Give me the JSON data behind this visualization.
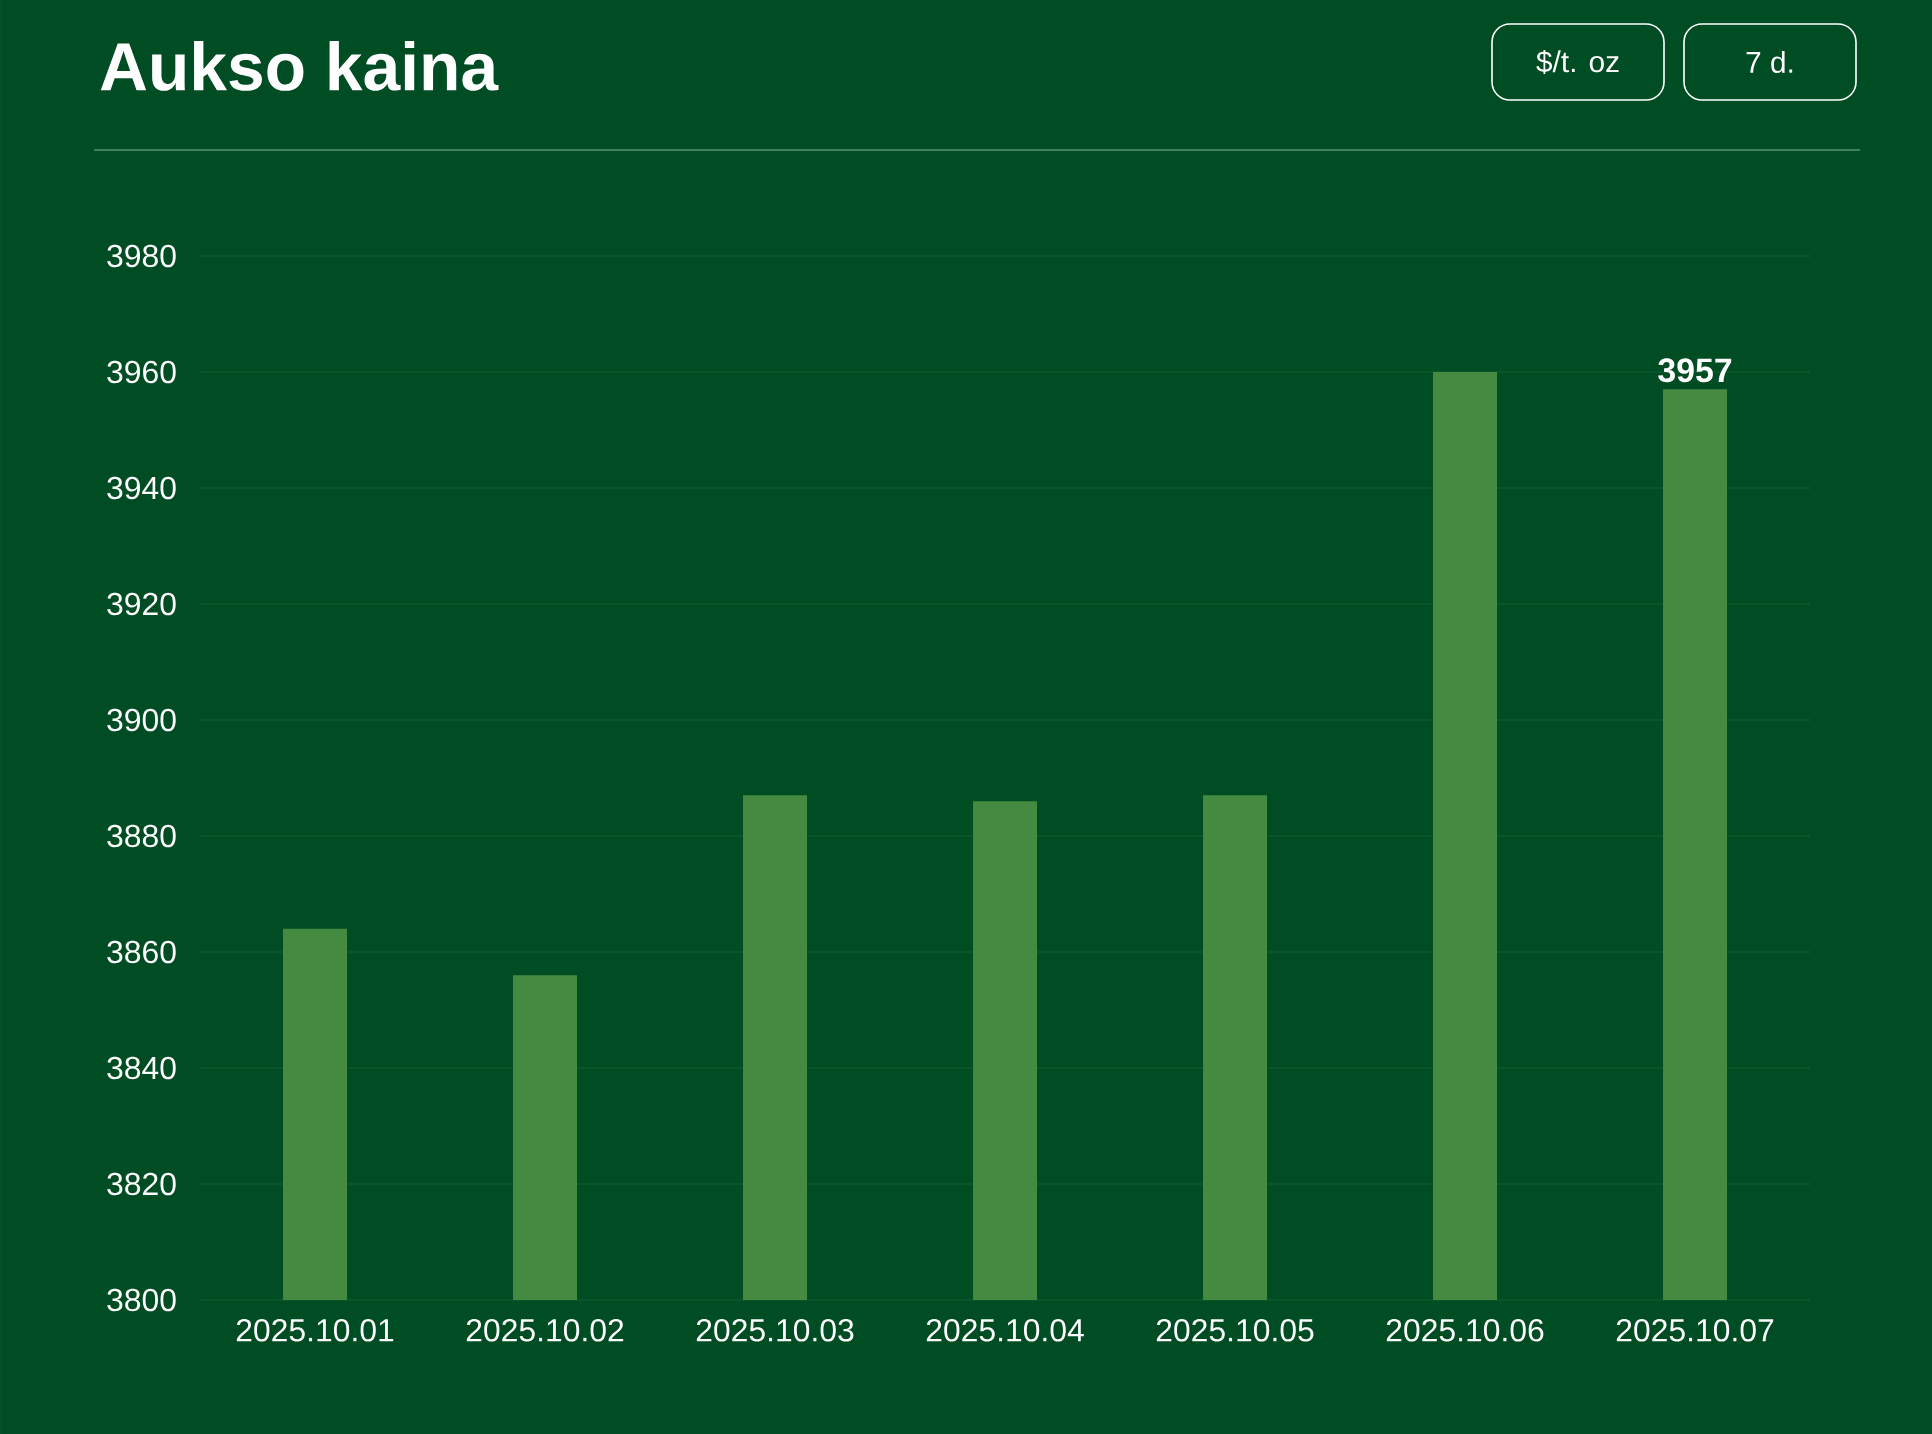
{
  "chart_data": {
    "type": "bar",
    "title": "Aukso kaina",
    "annotations": [
      "$/t. oz",
      "7 d."
    ],
    "categories": [
      "2025.10.01",
      "2025.10.02",
      "2025.10.03",
      "2025.10.04",
      "2025.10.05",
      "2025.10.06",
      "2025.10.07"
    ],
    "values": [
      3864,
      3856,
      3887,
      3886,
      3887,
      3960,
      3957
    ],
    "value_labels": [
      null,
      null,
      null,
      null,
      null,
      null,
      "3957"
    ],
    "color": "#458a41",
    "ylim": [
      3800,
      3980
    ],
    "yticks": [
      3800,
      3820,
      3840,
      3860,
      3880,
      3900,
      3920,
      3940,
      3960,
      3980
    ],
    "grid": "y"
  }
}
